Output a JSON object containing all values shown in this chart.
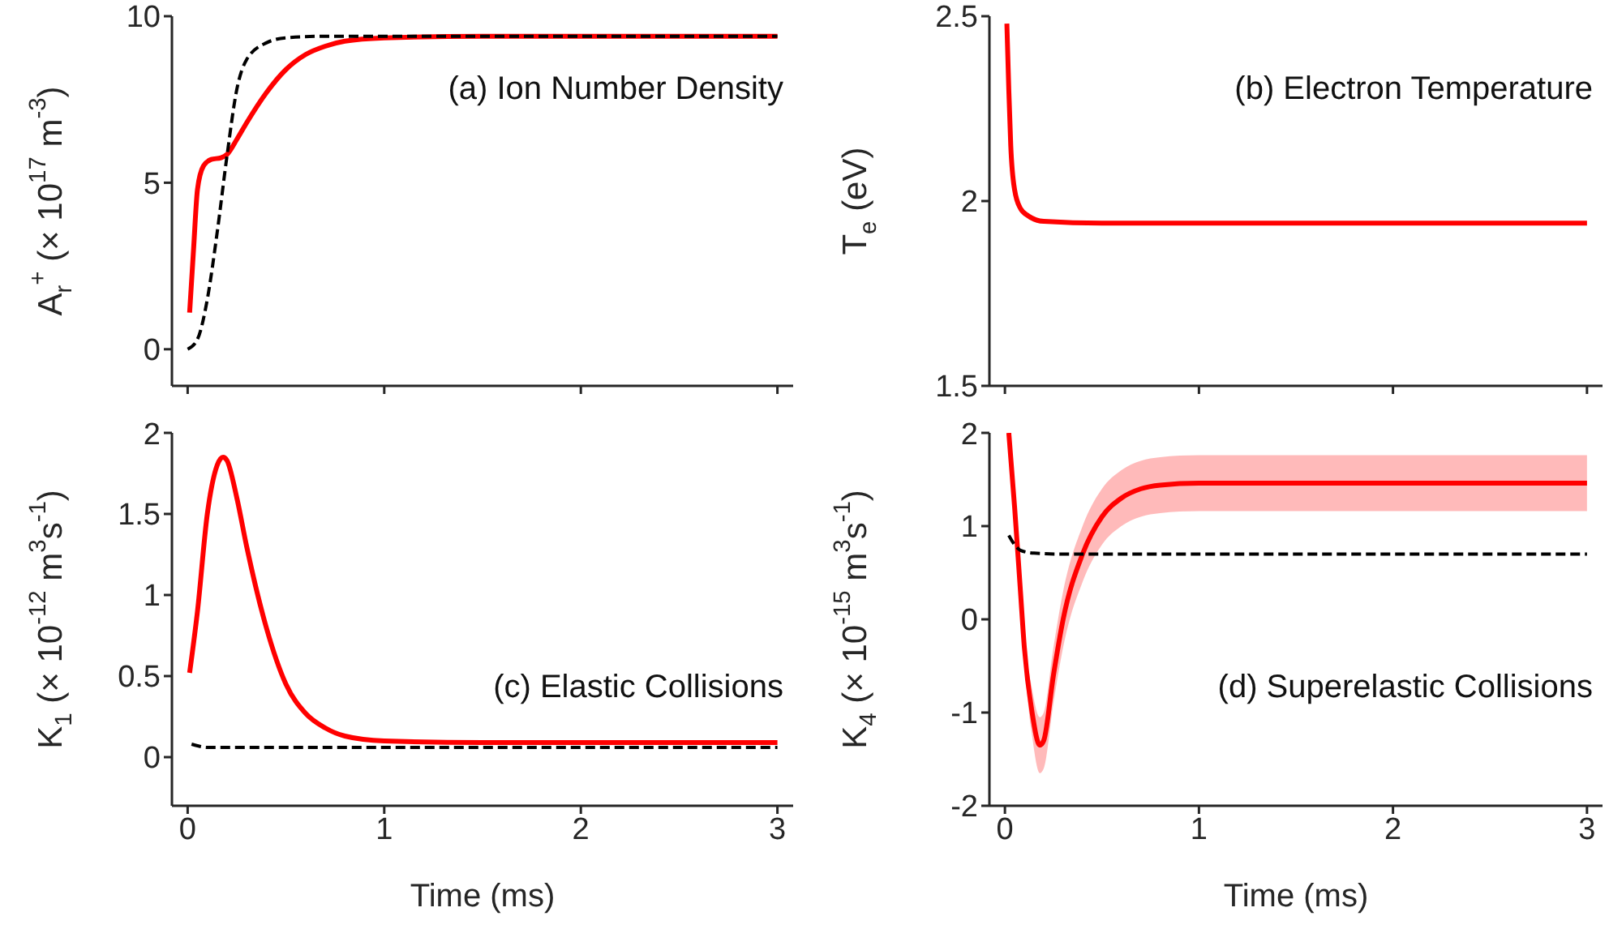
{
  "chart_data": [
    {
      "type": "line",
      "ylabel": "A$_{r}$$^{+}$ (× 10$^{17}$ m$^{-3}$)",
      "annotations": [
        "(a) Ion Number Density"
      ],
      "xlim": [
        -0.08,
        3.08
      ],
      "xticks": [
        0,
        1,
        2,
        3
      ],
      "ylim": [
        -1.1,
        10
      ],
      "yticks": [
        0,
        5,
        10
      ],
      "tick_labels": "y",
      "series": [
        {
          "color": "#000000",
          "line_style": "dashed",
          "x": [
            0,
            0.05,
            0.1,
            0.15,
            0.2,
            0.25,
            0.3,
            0.4,
            0.5,
            0.7,
            1,
            2,
            3
          ],
          "values": [
            0,
            0.3,
            1.5,
            3.5,
            5.8,
            7.8,
            8.7,
            9.2,
            9.35,
            9.4,
            9.4,
            9.4,
            9.4
          ]
        },
        {
          "color": "#ff0000",
          "line_style": "solid",
          "x": [
            0.01,
            0.03,
            0.05,
            0.08,
            0.12,
            0.17,
            0.2,
            0.25,
            0.3,
            0.4,
            0.5,
            0.6,
            0.7,
            0.8,
            1,
            1.5,
            2,
            3
          ],
          "values": [
            1.1,
            3,
            4.8,
            5.5,
            5.7,
            5.75,
            5.85,
            6.3,
            6.8,
            7.7,
            8.4,
            8.85,
            9.1,
            9.25,
            9.35,
            9.4,
            9.4,
            9.4
          ]
        }
      ]
    },
    {
      "type": "line",
      "ylabel": "T$_{e}$ (eV)",
      "annotations": [
        "(b) Electron Temperature"
      ],
      "xlim": [
        -0.08,
        3.08
      ],
      "xticks": [
        0,
        1,
        2,
        3
      ],
      "ylim": [
        1.5,
        2.5
      ],
      "yticks": [
        1.5,
        2,
        2.5
      ],
      "tick_labels": "y",
      "series": [
        {
          "color": "#ff0000",
          "line_style": "solid",
          "x": [
            0.01,
            0.02,
            0.03,
            0.05,
            0.08,
            0.12,
            0.2,
            0.5,
            1,
            2,
            3
          ],
          "values": [
            2.48,
            2.3,
            2.15,
            2.03,
            1.98,
            1.96,
            1.945,
            1.94,
            1.94,
            1.94,
            1.94
          ]
        }
      ]
    },
    {
      "type": "line",
      "xlabel": "Time (ms)",
      "ylabel": "K$_{1}$ (× 10$^{-12}$ m$^{3}$s$^{-1}$)",
      "annotations": [
        "(c) Elastic Collisions"
      ],
      "xlim": [
        -0.08,
        3.08
      ],
      "xticks": [
        0,
        1,
        2,
        3
      ],
      "ylim": [
        -0.3,
        2
      ],
      "yticks": [
        0,
        0.5,
        1,
        1.5,
        2
      ],
      "series": [
        {
          "color": "#000000",
          "line_style": "dashed",
          "x": [
            0.02,
            0.05,
            0.1,
            0.5,
            1,
            2,
            3
          ],
          "values": [
            0.08,
            0.07,
            0.06,
            0.06,
            0.06,
            0.06,
            0.06
          ]
        },
        {
          "color": "#ff0000",
          "line_style": "solid",
          "x": [
            0.01,
            0.05,
            0.1,
            0.15,
            0.18,
            0.2,
            0.25,
            0.3,
            0.4,
            0.5,
            0.6,
            0.7,
            0.8,
            1,
            1.5,
            2,
            3
          ],
          "values": [
            0.52,
            0.9,
            1.5,
            1.8,
            1.85,
            1.83,
            1.6,
            1.3,
            0.8,
            0.45,
            0.27,
            0.18,
            0.13,
            0.1,
            0.09,
            0.09,
            0.09
          ]
        }
      ]
    },
    {
      "type": "line",
      "xlabel": "Time (ms)",
      "ylabel": "K$_{4}$ (× 10$^{-15}$ m$^{3}$s$^{-1}$)",
      "annotations": [
        "(d) Superelastic Collisions"
      ],
      "xlim": [
        -0.08,
        3.08
      ],
      "xticks": [
        0,
        1,
        2,
        3
      ],
      "ylim": [
        -2,
        2
      ],
      "yticks": [
        -2,
        -1,
        0,
        1,
        2
      ],
      "series": [
        {
          "color": "#000000",
          "line_style": "dashed",
          "x": [
            0.02,
            0.05,
            0.08,
            0.15,
            0.3,
            1,
            2,
            3
          ],
          "values": [
            0.9,
            0.8,
            0.74,
            0.71,
            0.7,
            0.7,
            0.7,
            0.7
          ]
        },
        {
          "color": "#ff0000",
          "line_style": "solid",
          "x": [
            0.02,
            0.05,
            0.08,
            0.1,
            0.14,
            0.18,
            0.2,
            0.25,
            0.3,
            0.4,
            0.5,
            0.6,
            0.7,
            0.8,
            1,
            2,
            3
          ],
          "values": [
            2,
            1.2,
            0.3,
            -0.3,
            -1,
            -1.35,
            -1.3,
            -0.6,
            0,
            0.7,
            1.1,
            1.3,
            1.4,
            1.44,
            1.46,
            1.46,
            1.46
          ],
          "lower": [
            2,
            1.15,
            0.2,
            -0.45,
            -1.25,
            -1.65,
            -1.6,
            -0.9,
            -0.3,
            0.4,
            0.8,
            1,
            1.1,
            1.14,
            1.16,
            1.16,
            1.16
          ],
          "upper": [
            2,
            1.25,
            0.4,
            -0.15,
            -0.75,
            -1.05,
            -1,
            -0.3,
            0.3,
            1,
            1.4,
            1.6,
            1.7,
            1.74,
            1.76,
            1.76,
            1.76
          ]
        }
      ]
    }
  ]
}
